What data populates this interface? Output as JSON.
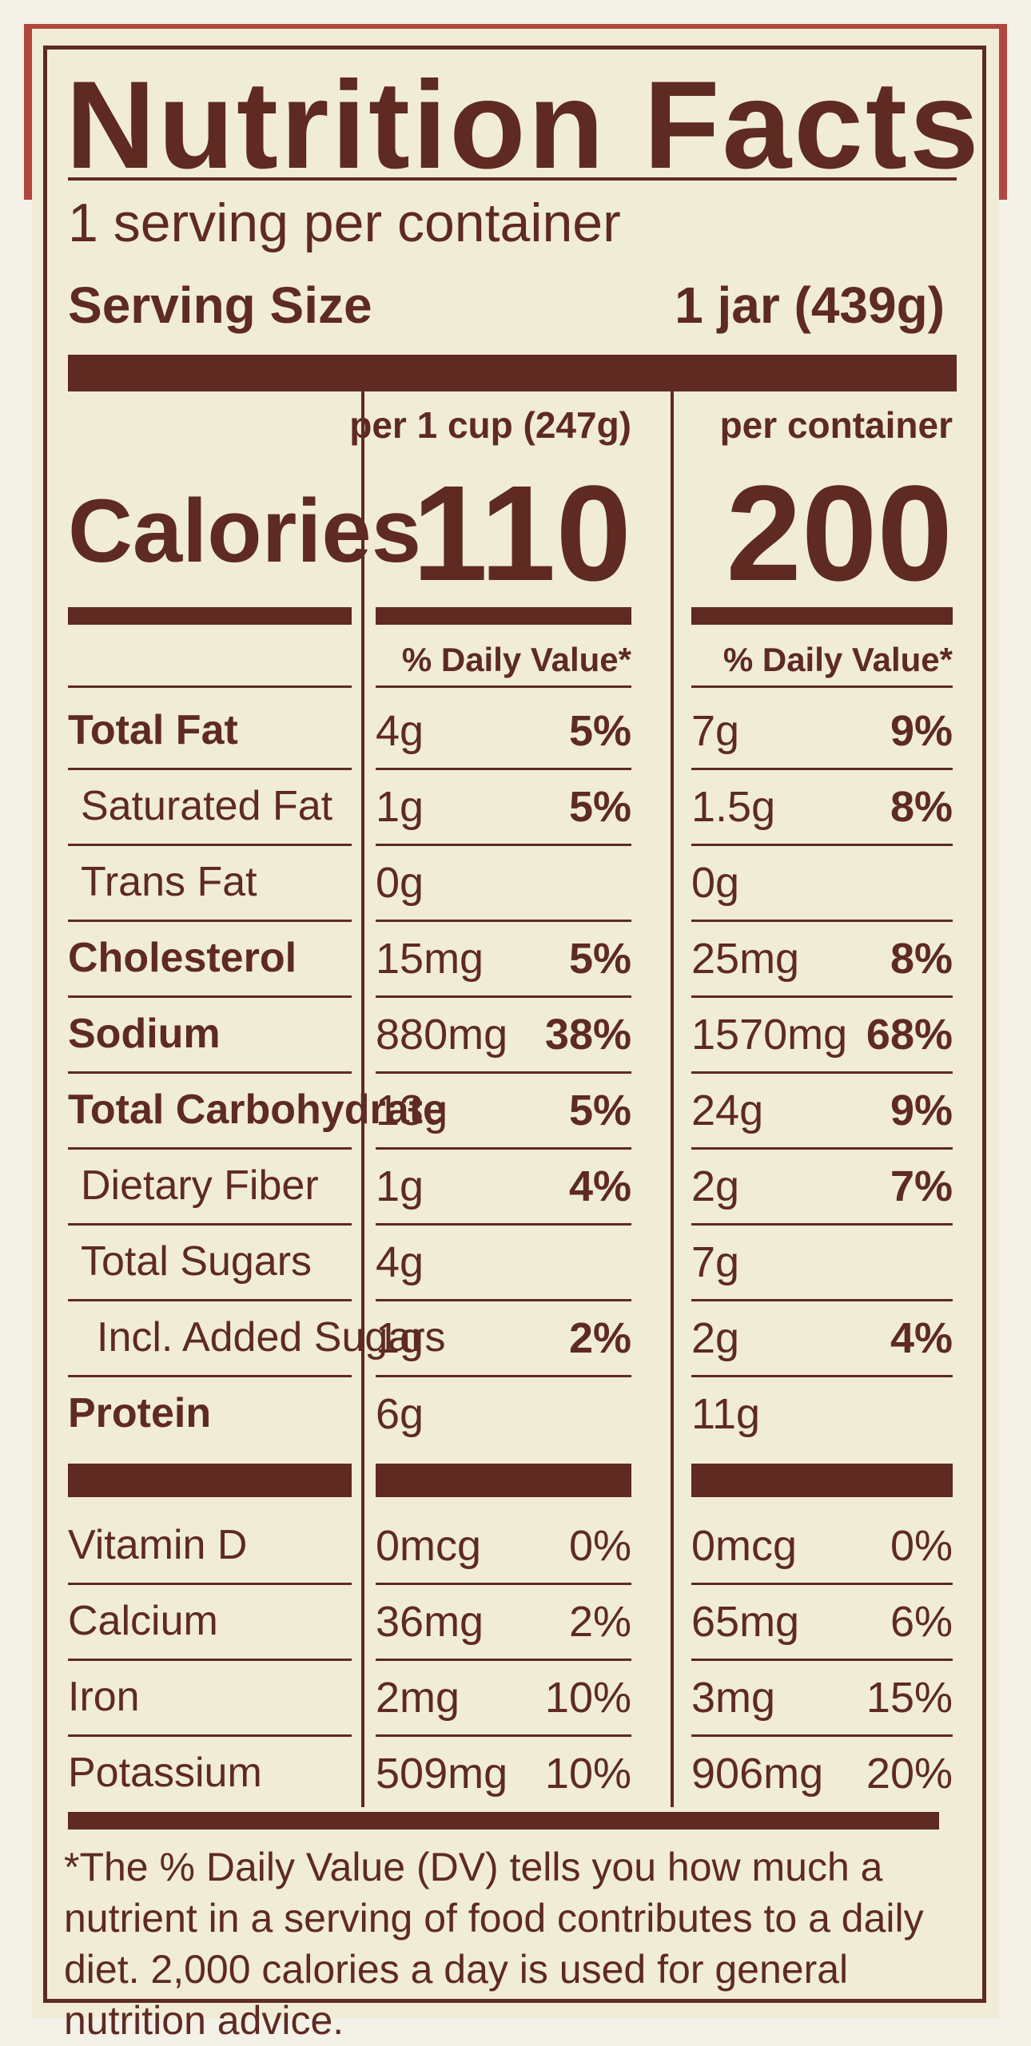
{
  "title": "Nutrition Facts",
  "servings": "1 serving per container",
  "serving_size": {
    "label": "Serving Size",
    "value": "1 jar (439g)"
  },
  "calories_label": "Calories",
  "columns": [
    {
      "header": "per 1 cup (247g)",
      "calories": "110",
      "dv_header": "% Daily Value*"
    },
    {
      "header": "per container",
      "calories": "200",
      "dv_header": "% Daily Value*"
    }
  ],
  "nutrients": [
    {
      "name": "Total Fat",
      "values": [
        [
          "4g",
          "5%"
        ],
        [
          "7g",
          "9%"
        ]
      ]
    },
    {
      "name": "Saturated Fat",
      "values": [
        [
          "1g",
          "5%"
        ],
        [
          "1.5g",
          "8%"
        ]
      ]
    },
    {
      "name": "Trans Fat",
      "values": [
        [
          "0g"
        ],
        [
          "0g"
        ]
      ]
    },
    {
      "name": "Cholesterol",
      "values": [
        [
          "15mg",
          "5%"
        ],
        [
          "25mg",
          "8%"
        ]
      ]
    },
    {
      "name": "Sodium",
      "values": [
        [
          "880mg",
          "38%"
        ],
        [
          "1570mg",
          "68%"
        ]
      ]
    },
    {
      "name": "Total Carbohydrate",
      "values": [
        [
          "13g",
          "5%"
        ],
        [
          "24g",
          "9%"
        ]
      ]
    },
    {
      "name": "Dietary Fiber",
      "values": [
        [
          "1g",
          "4%"
        ],
        [
          "2g",
          "7%"
        ]
      ]
    },
    {
      "name": "Total Sugars",
      "values": [
        [
          "4g"
        ],
        [
          "7g"
        ]
      ]
    },
    {
      "name": "Incl. Added Sugars",
      "values": [
        [
          "1g",
          "2%"
        ],
        [
          "2g",
          "4%"
        ]
      ]
    },
    {
      "name": "Protein",
      "values": [
        [
          "6g"
        ],
        [
          "11g"
        ]
      ]
    }
  ],
  "vitamins": [
    {
      "name": "Vitamin D",
      "values": [
        [
          "0mcg",
          "0%"
        ],
        [
          "0mcg",
          "0%"
        ]
      ]
    },
    {
      "name": "Calcium",
      "values": [
        [
          "36mg",
          "2%"
        ],
        [
          "65mg",
          "6%"
        ]
      ]
    },
    {
      "name": "Iron",
      "values": [
        [
          "2mg",
          "10%"
        ],
        [
          "3mg",
          "15%"
        ]
      ]
    },
    {
      "name": "Potassium",
      "values": [
        [
          "509mg",
          "10%"
        ],
        [
          "906mg",
          "20%"
        ]
      ]
    }
  ],
  "footnote": "*The % Daily Value (DV) tells you how much a nutrient in a serving of food contributes to a daily diet. 2,000 calories a day is used for general nutrition advice."
}
